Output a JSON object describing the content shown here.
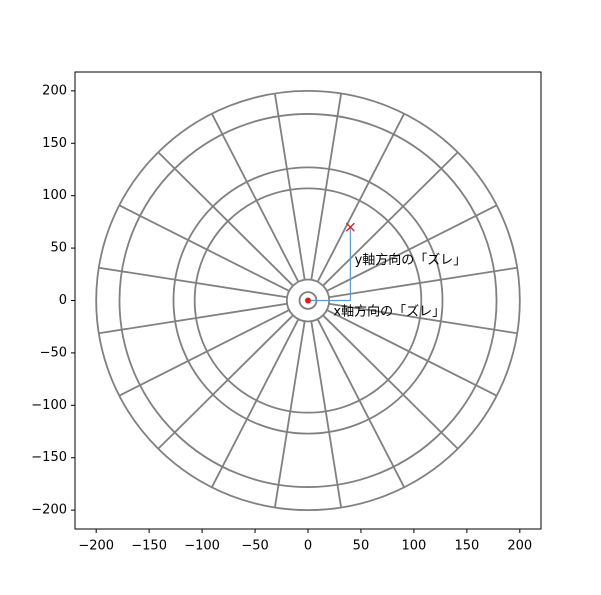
{
  "chart_data": {
    "type": "dartboard",
    "xlim": [
      -220,
      220
    ],
    "ylim": [
      -218,
      218
    ],
    "xticks": [
      {
        "value": -200,
        "label": "−200"
      },
      {
        "value": -150,
        "label": "−150"
      },
      {
        "value": -100,
        "label": "−100"
      },
      {
        "value": -50,
        "label": "−50"
      },
      0,
      50,
      100,
      150,
      200
    ],
    "yticks": [
      {
        "value": -200,
        "label": "−200"
      },
      {
        "value": -150,
        "label": "−150"
      },
      {
        "value": -100,
        "label": "−100"
      },
      {
        "value": -50,
        "label": "−50"
      },
      0,
      50,
      100,
      150,
      200
    ],
    "rings": [
      8,
      20,
      107,
      127,
      178,
      200
    ],
    "segments": 20,
    "board_color": "#808080",
    "points": [
      {
        "x": 40,
        "y": 70,
        "marker": "x",
        "color": "#e41a1c"
      },
      {
        "x": 0,
        "y": 0,
        "marker": "o",
        "color": "#e41a1c"
      }
    ],
    "guide_color": "#5b9bd5",
    "annotations": [
      {
        "text": "y軸方向の「ズレ」",
        "x": 44,
        "y": 38,
        "color": "#2f63c4"
      },
      {
        "text": "x軸方向の「ズレ」",
        "x": 24,
        "y": -11,
        "color": "#2f63c4"
      }
    ]
  }
}
